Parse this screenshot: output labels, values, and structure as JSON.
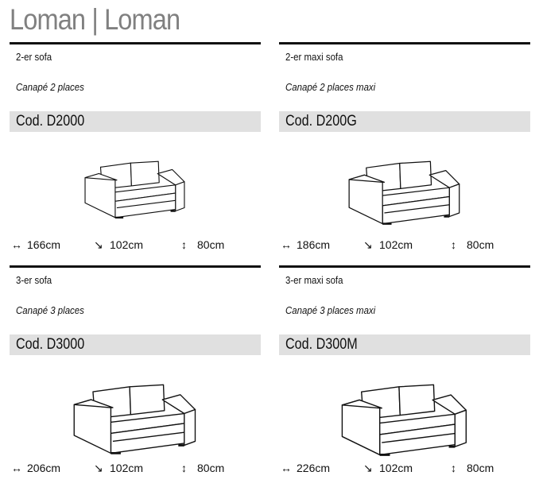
{
  "title": "Loman | Loman",
  "products": [
    {
      "type": "2-er sofa",
      "french": "Canapé 2 places",
      "code": "Cod. D2000",
      "width": "166cm",
      "depth": "102cm",
      "height": "80cm"
    },
    {
      "type": "2-er maxi sofa",
      "french": "Canapé 2 places maxi",
      "code": "Cod. D200G",
      "width": "186cm",
      "depth": "102cm",
      "height": "80cm"
    },
    {
      "type": "3-er sofa",
      "french": "Canapé 3 places",
      "code": "Cod. D3000",
      "width": "206cm",
      "depth": "102cm",
      "height": "80cm"
    },
    {
      "type": "3-er maxi sofa",
      "french": "Canapé 3 places maxi",
      "code": "Cod. D300M",
      "width": "226cm",
      "depth": "102cm",
      "height": "80cm"
    }
  ],
  "icons": {
    "width": "↔",
    "depth": "↘",
    "height": "↕"
  }
}
